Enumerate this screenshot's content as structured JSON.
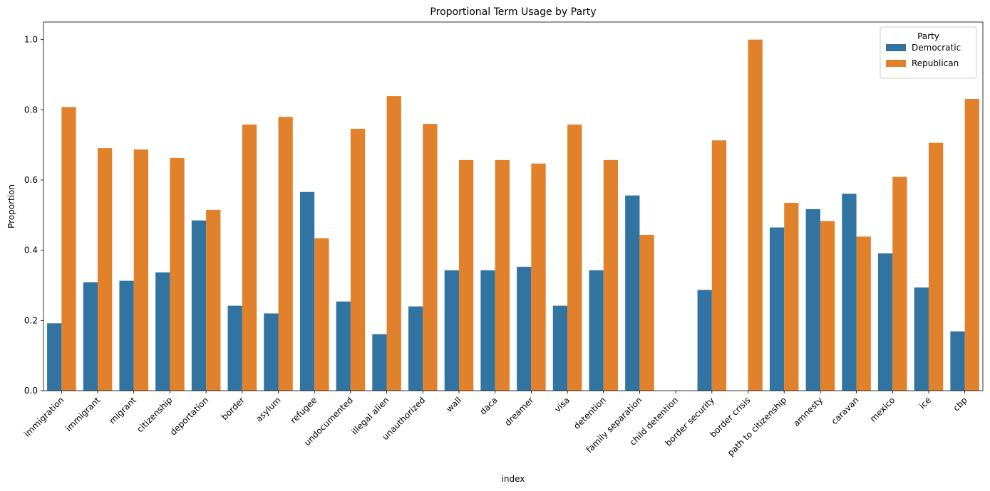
{
  "chart_data": {
    "type": "bar",
    "title": "Proportional Term Usage by Party",
    "xlabel": "index",
    "ylabel": "Proportion",
    "ylim": [
      0,
      1.05
    ],
    "yticks": [
      "0.0",
      "0.2",
      "0.4",
      "0.6",
      "0.8",
      "1.0"
    ],
    "legend": {
      "title": "Party",
      "placement": "top-right"
    },
    "categories": [
      "immigration",
      "immigrant",
      "migrant",
      "citizenship",
      "deportation",
      "border",
      "asylum",
      "refugee",
      "undocumented",
      "illegal alien",
      "unauthorized",
      "wall",
      "daca",
      "dreamer",
      "visa",
      "detention",
      "family separation",
      "child detention",
      "border security",
      "border crisis",
      "path to citizenship",
      "amnesty",
      "caravan",
      "mexico",
      "ice",
      "cbp"
    ],
    "series": [
      {
        "name": "Democratic",
        "color": "#3274a1",
        "values": [
          0.192,
          0.309,
          0.313,
          0.337,
          0.485,
          0.242,
          0.22,
          0.566,
          0.254,
          0.161,
          0.24,
          0.343,
          0.343,
          0.353,
          0.242,
          0.343,
          0.556,
          0.0,
          0.287,
          0.0,
          0.465,
          0.517,
          0.561,
          0.391,
          0.294,
          0.169
        ]
      },
      {
        "name": "Republican",
        "color": "#e1812c",
        "values": [
          0.808,
          0.691,
          0.687,
          0.663,
          0.515,
          0.758,
          0.78,
          0.434,
          0.746,
          0.839,
          0.76,
          0.657,
          0.657,
          0.647,
          0.758,
          0.657,
          0.444,
          0.0,
          0.713,
          1.0,
          0.535,
          0.483,
          0.439,
          0.609,
          0.706,
          0.831
        ]
      }
    ]
  }
}
